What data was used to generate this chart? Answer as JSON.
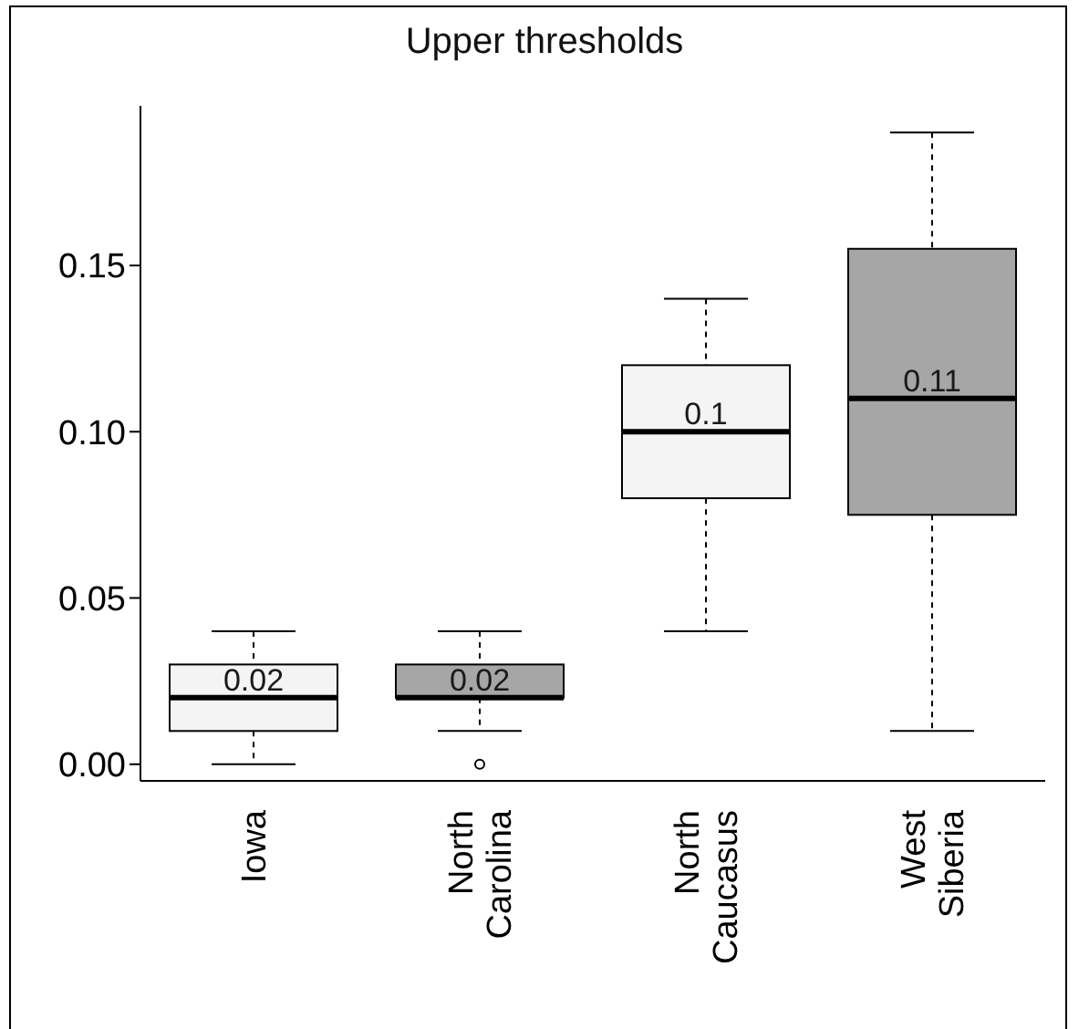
{
  "chart_data": {
    "type": "box",
    "title": "Upper thresholds",
    "categories": [
      "Iowa",
      "North Carolina",
      "North Caucasus",
      "West Siberia"
    ],
    "boxes": [
      {
        "low": 0.0,
        "q1": 0.01,
        "median": 0.02,
        "q3": 0.03,
        "high": 0.04
      },
      {
        "low": 0.01,
        "q1": 0.02,
        "median": 0.02,
        "q3": 0.03,
        "high": 0.04,
        "outliers": [
          0.0
        ]
      },
      {
        "low": 0.04,
        "q1": 0.08,
        "median": 0.1,
        "q3": 0.12,
        "high": 0.14
      },
      {
        "low": 0.01,
        "q1": 0.075,
        "median": 0.11,
        "q3": 0.155,
        "high": 0.19
      }
    ],
    "colors": [
      "#f4f4f4",
      "#a6a6a6",
      "#f4f4f4",
      "#a6a6a6"
    ],
    "annotations": [
      {
        "text": "0.02",
        "x": "Iowa",
        "y": 0.02
      },
      {
        "text": "0.02",
        "x": "North Carolina",
        "y": 0.02
      },
      {
        "text": "0.1",
        "x": "North Caucasus",
        "y": 0.1
      },
      {
        "text": "0.11",
        "x": "West Siberia",
        "y": 0.11
      }
    ],
    "ylim": [
      -0.005,
      0.198
    ],
    "yticks": [
      {
        "value": 0,
        "label": "0.00"
      },
      {
        "value": 0.05,
        "label": "0.05"
      },
      {
        "value": 0.1,
        "label": "0.10"
      },
      {
        "value": 0.15,
        "label": "0.15"
      }
    ]
  }
}
